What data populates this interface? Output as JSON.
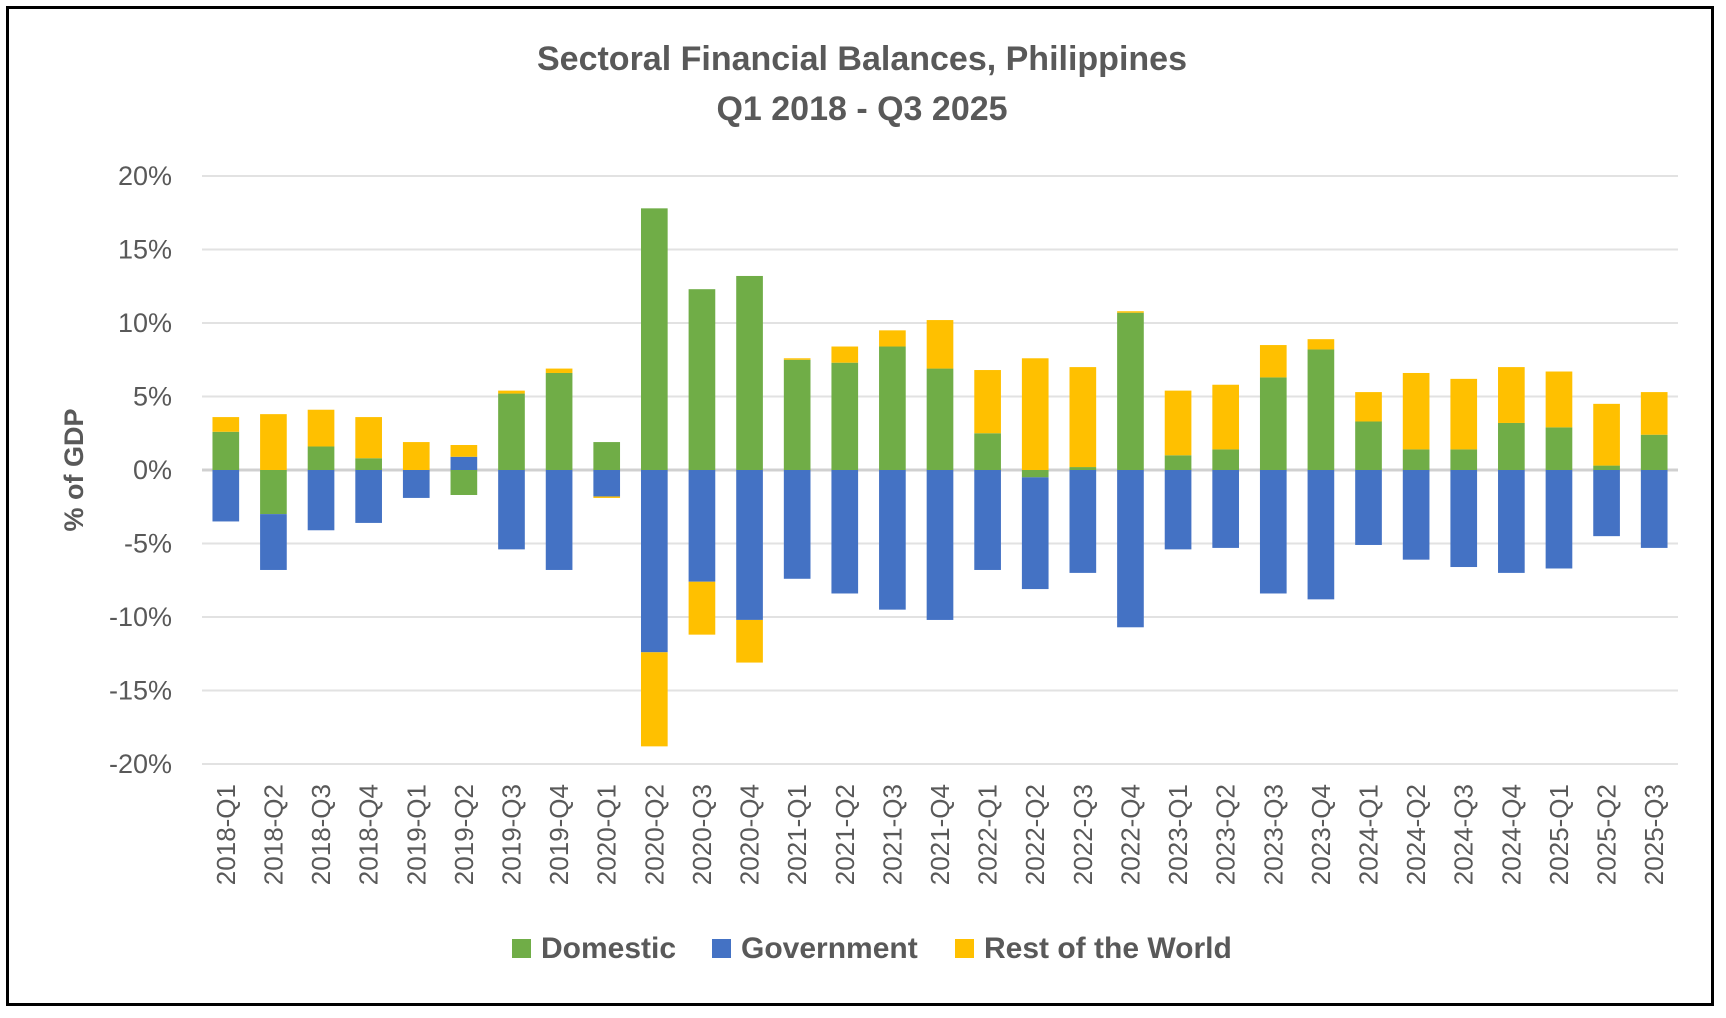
{
  "chart_data": {
    "type": "bar",
    "stacked": true,
    "title": "Sectoral Financial Balances, Philippines",
    "subtitle": "Q1 2018 - Q3 2025",
    "ylabel": "% of GDP",
    "xlabel": "",
    "ylim": [
      -20,
      20
    ],
    "yticks": [
      "20%",
      "15%",
      "10%",
      "5%",
      "0%",
      "-5%",
      "-10%",
      "-15%",
      "-20%"
    ],
    "grid": true,
    "legend_position": "bottom",
    "categories": [
      "2018-Q1",
      "2018-Q2",
      "2018-Q3",
      "2018-Q4",
      "2019-Q1",
      "2019-Q2",
      "2019-Q3",
      "2019-Q4",
      "2020-Q1",
      "2020-Q2",
      "2020-Q3",
      "2020-Q4",
      "2021-Q1",
      "2021-Q2",
      "2021-Q3",
      "2021-Q4",
      "2022-Q1",
      "2022-Q2",
      "2022-Q3",
      "2022-Q4",
      "2023-Q1",
      "2023-Q2",
      "2023-Q3",
      "2023-Q4",
      "2024-Q1",
      "2024-Q2",
      "2024-Q3",
      "2024-Q4",
      "2025-Q1",
      "2025-Q2",
      "2025-Q3"
    ],
    "series": [
      {
        "name": "Domestic",
        "color": "#70ad47",
        "values": [
          2.6,
          -3.0,
          1.6,
          0.8,
          0.0,
          -1.7,
          5.2,
          6.6,
          1.9,
          17.8,
          12.3,
          13.2,
          7.5,
          7.3,
          8.4,
          6.9,
          2.5,
          -0.5,
          0.2,
          10.7,
          1.0,
          1.4,
          6.3,
          8.2,
          3.3,
          1.4,
          1.4,
          3.2,
          2.9,
          0.3,
          2.4
        ]
      },
      {
        "name": "Government",
        "color": "#4472c4",
        "values": [
          -3.5,
          -3.8,
          -4.1,
          -3.6,
          -1.9,
          0.9,
          -5.4,
          -6.8,
          -1.8,
          -12.4,
          -7.6,
          -10.2,
          -7.4,
          -8.4,
          -9.5,
          -10.2,
          -6.8,
          -7.6,
          -7.0,
          -10.7,
          -5.4,
          -5.3,
          -8.4,
          -8.8,
          -5.1,
          -6.1,
          -6.6,
          -7.0,
          -6.7,
          -4.5,
          -5.3
        ]
      },
      {
        "name": "Rest of the World",
        "color": "#ffc000",
        "values": [
          1.0,
          3.8,
          2.5,
          2.8,
          1.9,
          0.8,
          0.2,
          0.3,
          -0.1,
          -6.4,
          -3.6,
          -2.9,
          0.1,
          1.1,
          1.1,
          3.3,
          4.3,
          7.6,
          6.8,
          0.1,
          4.4,
          4.4,
          2.2,
          0.7,
          2.0,
          5.2,
          4.8,
          3.8,
          3.8,
          4.2,
          2.9
        ]
      }
    ]
  }
}
